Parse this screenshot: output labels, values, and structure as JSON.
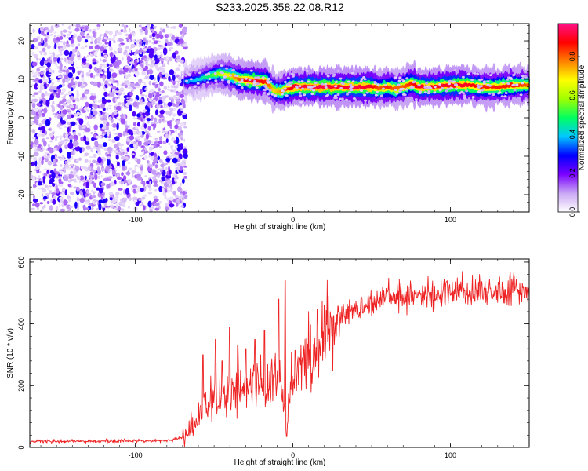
{
  "title": "S233.2025.358.22.08.R12",
  "chart_data": [
    {
      "type": "heatmap",
      "xlabel": "Height of straight line (km)",
      "ylabel": "Frequency (Hz)",
      "xlim": [
        -167,
        150
      ],
      "ylim": [
        -24.5,
        24.5
      ],
      "xticks": [
        -100,
        0,
        100
      ],
      "yticks": [
        -20,
        -10,
        0,
        10,
        20
      ],
      "colorbar": {
        "label": "Normalized spectral amplitude",
        "range": [
          0,
          0.97
        ],
        "ticks": [
          "0.0",
          "0.2",
          "0.4",
          "0.6",
          "0.8"
        ],
        "tick_values": [
          0,
          0.2,
          0.4,
          0.6,
          0.8
        ],
        "colors": [
          "#ffffff",
          "#c9a6f4",
          "#7a00ff",
          "#0000ff",
          "#00c8ff",
          "#00ff60",
          "#a0ff00",
          "#ffff00",
          "#ff8000",
          "#ff0000",
          "#ff1088"
        ]
      },
      "noise_region_x": [
        -167,
        -68
      ],
      "ridge": {
        "x": [
          -68,
          -60,
          -52,
          -46,
          -40,
          -34,
          -28,
          -22,
          -17,
          -12,
          -8,
          0,
          10,
          20,
          30,
          40,
          50,
          55,
          60,
          65,
          70,
          75,
          80,
          90,
          100,
          110,
          120,
          130,
          140,
          150
        ],
        "y": [
          9.5,
          10,
          11,
          11.5,
          11,
          10,
          9.8,
          9.5,
          9.5,
          7,
          6.8,
          8,
          8,
          8,
          8,
          8,
          8,
          7.5,
          8,
          7.5,
          8,
          9,
          8,
          8,
          8.5,
          8.5,
          8,
          8,
          8.5,
          8.5
        ],
        "amp": [
          0.35,
          0.4,
          0.5,
          0.6,
          0.7,
          0.8,
          0.9,
          0.9,
          0.85,
          0.7,
          0.75,
          0.9,
          0.92,
          0.92,
          0.9,
          0.92,
          0.9,
          0.8,
          0.85,
          0.8,
          0.8,
          0.85,
          0.9,
          0.9,
          0.9,
          0.9,
          0.85,
          0.85,
          0.85,
          0.8
        ]
      }
    },
    {
      "type": "line",
      "xlabel": "Height of straight line (km)",
      "ylabel": "SNR (10 * v/v)",
      "xlim": [
        -167,
        150
      ],
      "ylim": [
        0,
        610
      ],
      "xticks": [
        -100,
        0,
        100
      ],
      "yticks": [
        0,
        200,
        400,
        600
      ],
      "series": [
        {
          "color": "#ee2222",
          "x": [
            -167,
            -140,
            -110,
            -80,
            -72,
            -68,
            -63,
            -58,
            -54,
            -50,
            -46,
            -42,
            -38,
            -34,
            -30,
            -26,
            -22,
            -18,
            -14,
            -10,
            -7,
            -5,
            -4,
            -3,
            -1,
            2,
            6,
            10,
            15,
            20,
            25,
            30,
            35,
            40,
            50,
            60,
            70,
            80,
            90,
            100,
            110,
            120,
            130,
            140,
            150
          ],
          "y": [
            20,
            20,
            21,
            22,
            28,
            40,
            70,
            110,
            140,
            160,
            150,
            180,
            190,
            175,
            200,
            210,
            205,
            195,
            190,
            230,
            180,
            100,
            40,
            130,
            200,
            260,
            270,
            300,
            340,
            370,
            400,
            430,
            440,
            450,
            470,
            480,
            485,
            490,
            495,
            500,
            500,
            500,
            505,
            510,
            510
          ]
        }
      ],
      "spikes": [
        {
          "x": -57,
          "y": 300
        },
        {
          "x": -49,
          "y": 350
        },
        {
          "x": -45,
          "y": 280
        },
        {
          "x": -40,
          "y": 390
        },
        {
          "x": -35,
          "y": 330
        },
        {
          "x": -30,
          "y": 320
        },
        {
          "x": -24,
          "y": 350
        },
        {
          "x": -18,
          "y": 380
        },
        {
          "x": -9,
          "y": 480
        },
        {
          "x": -5,
          "y": 540
        },
        {
          "x": -4,
          "y": 35
        }
      ]
    }
  ]
}
